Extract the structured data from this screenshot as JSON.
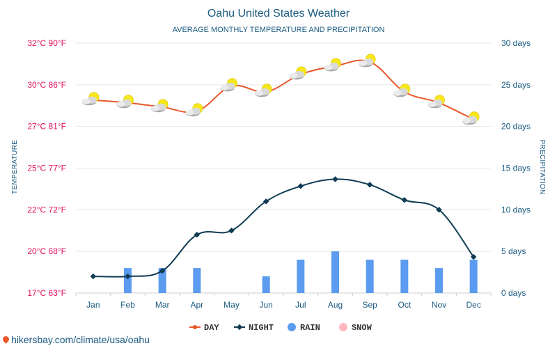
{
  "chart_data": {
    "type": "line",
    "title": "Oahu United States Weather",
    "subtitle": "AVERAGE MONTHLY TEMPERATURE AND PRECIPITATION",
    "ylabel_left": "TEMPERATURE",
    "ylabel_right": "PRECIPITATION",
    "categories": [
      "Jan",
      "Feb",
      "Mar",
      "Apr",
      "May",
      "Jun",
      "Jul",
      "Aug",
      "Sep",
      "Oct",
      "Nov",
      "Dec"
    ],
    "left_ticks": [
      {
        "value": 17,
        "label": "17°C 63°F"
      },
      {
        "value": 20,
        "label": "20°C 68°F"
      },
      {
        "value": 22,
        "label": "22°C 72°F"
      },
      {
        "value": 25,
        "label": "25°C 77°F"
      },
      {
        "value": 27,
        "label": "27°C 81°F"
      },
      {
        "value": 30,
        "label": "30°C 86°F"
      },
      {
        "value": 32,
        "label": "32°C 90°F"
      }
    ],
    "right_ticks": [
      {
        "value": 0,
        "label": "0 days"
      },
      {
        "value": 5,
        "label": "5 days"
      },
      {
        "value": 10,
        "label": "10 days"
      },
      {
        "value": 15,
        "label": "15 days"
      },
      {
        "value": 20,
        "label": "20 days"
      },
      {
        "value": 25,
        "label": "25 days"
      },
      {
        "value": 30,
        "label": "30 days"
      }
    ],
    "precip_range": [
      0,
      30
    ],
    "series": [
      {
        "name": "DAY",
        "color": "#e8572a",
        "axis": "temperature",
        "values": [
          28.9,
          28.7,
          28.4,
          28.1,
          29.9,
          29.5,
          30.5,
          30.9,
          31.1,
          29.5,
          28.7,
          27.5
        ]
      },
      {
        "name": "NIGHT",
        "color": "#0f3b52",
        "axis": "temperature",
        "values": [
          18.2,
          18.2,
          18.6,
          20.8,
          21.0,
          22.6,
          23.7,
          24.2,
          23.8,
          22.7,
          22.0,
          19.6
        ]
      },
      {
        "name": "RAIN",
        "color": "#5b9bf0",
        "axis": "precipitation",
        "values": [
          0,
          3,
          3,
          3,
          0,
          2,
          4,
          5,
          4,
          4,
          3,
          4
        ]
      },
      {
        "name": "SNOW",
        "color": "#ffb6c1",
        "axis": "precipitation",
        "values": [
          0,
          0,
          0,
          0,
          0,
          0,
          0,
          0,
          0,
          0,
          0,
          0
        ]
      }
    ],
    "weather_icon": "partly-cloudy-icon",
    "grid": true,
    "legend_position": "bottom-center"
  },
  "source": "hikersbay.com/climate/usa/oahu",
  "colors": {
    "title": "#1a5a80",
    "left_axis": "#e0115f",
    "right_axis": "#1a5a80",
    "grid": "#e6e6e6"
  }
}
